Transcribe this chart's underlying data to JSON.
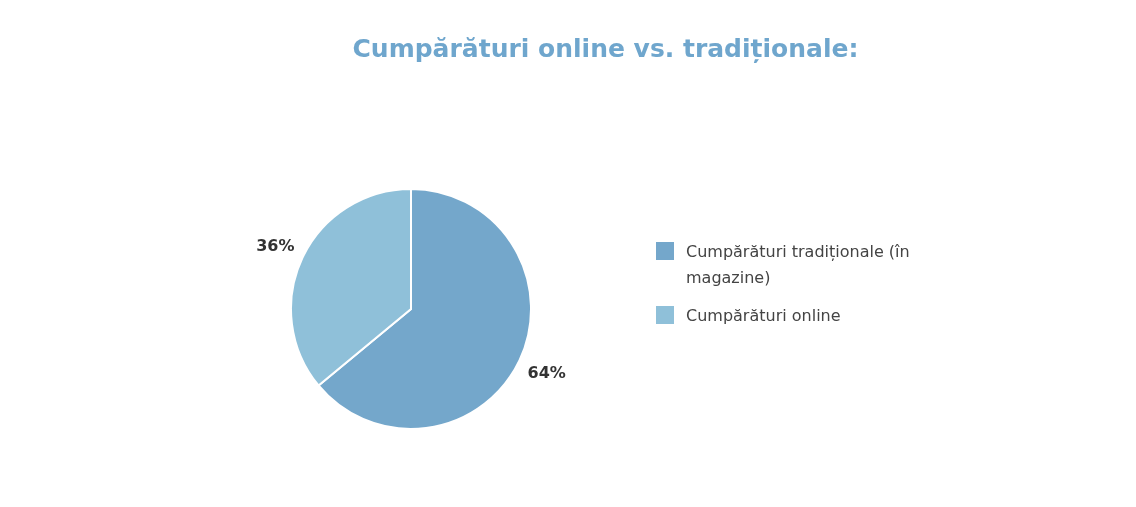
{
  "chart_data": {
    "type": "pie",
    "title": "Cumpărături online vs. tradiționale:",
    "categories": [
      "Cumpărături tradiționale (în magazine)",
      "Cumpărături online"
    ],
    "values": [
      64,
      36
    ],
    "colors": [
      "#74a7cb",
      "#8fc0d9"
    ],
    "value_labels": [
      "64%",
      "36%"
    ],
    "legend": "right"
  }
}
